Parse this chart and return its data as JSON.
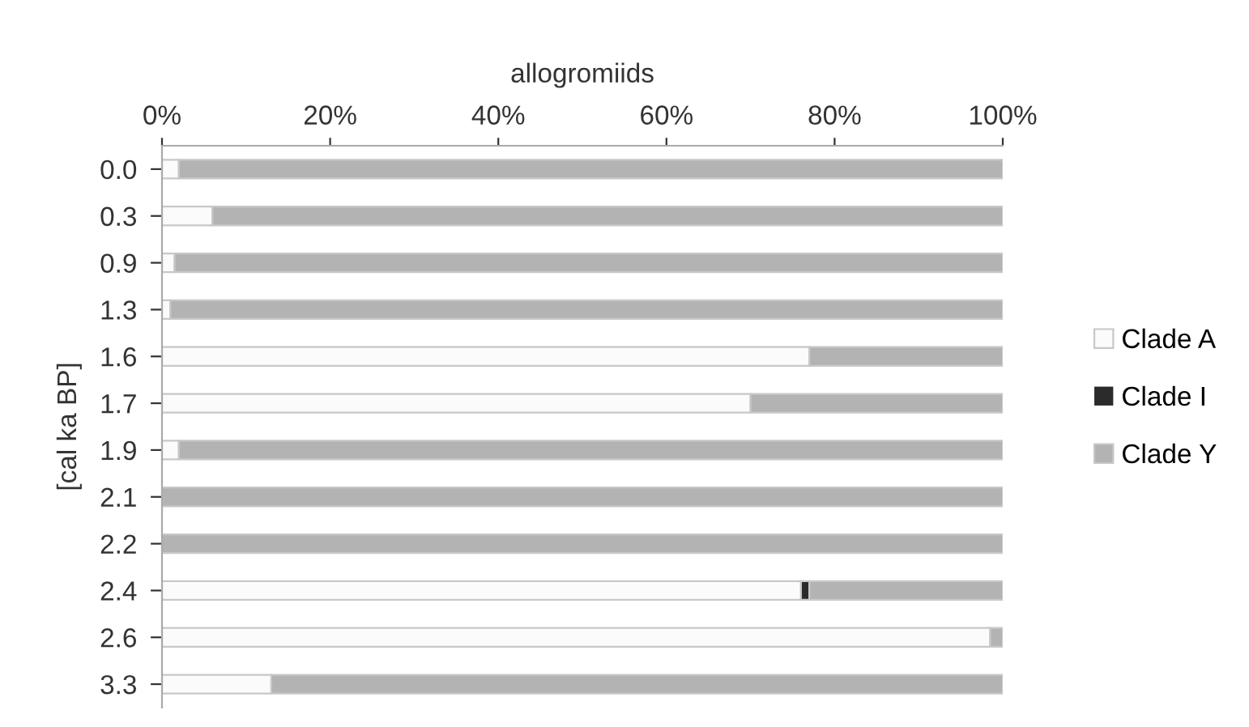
{
  "chart_data": {
    "type": "bar",
    "orientation": "horizontal",
    "stacked": true,
    "xlabel": "allogromiids",
    "ylabel": "[cal ka BP]",
    "categories": [
      "0.0",
      "0.3",
      "0.9",
      "1.3",
      "1.6",
      "1.7",
      "1.9",
      "2.1",
      "2.2",
      "2.4",
      "2.6",
      "3.3"
    ],
    "series": [
      {
        "name": "Clade A",
        "color": "#fbfbfb",
        "values": [
          2,
          6,
          1.5,
          1,
          77,
          70,
          2,
          0,
          0,
          76,
          98.5,
          13
        ]
      },
      {
        "name": "Clade I",
        "color": "#2b2b2b",
        "values": [
          0,
          0,
          0,
          0,
          0,
          0,
          0,
          0,
          0,
          1,
          0,
          0
        ]
      },
      {
        "name": "Clade Y",
        "color": "#b3b3b3",
        "values": [
          98,
          94,
          98.5,
          99,
          23,
          30,
          98,
          100,
          100,
          23,
          1.5,
          87
        ]
      }
    ],
    "xlim": [
      0,
      100
    ],
    "xticks": [
      {
        "value": 0,
        "label": "0%"
      },
      {
        "value": 20,
        "label": "20%"
      },
      {
        "value": 40,
        "label": "40%"
      },
      {
        "value": 60,
        "label": "60%"
      },
      {
        "value": 80,
        "label": "80%"
      },
      {
        "value": 100,
        "label": "100%"
      }
    ],
    "grid": false,
    "legend": "right"
  }
}
